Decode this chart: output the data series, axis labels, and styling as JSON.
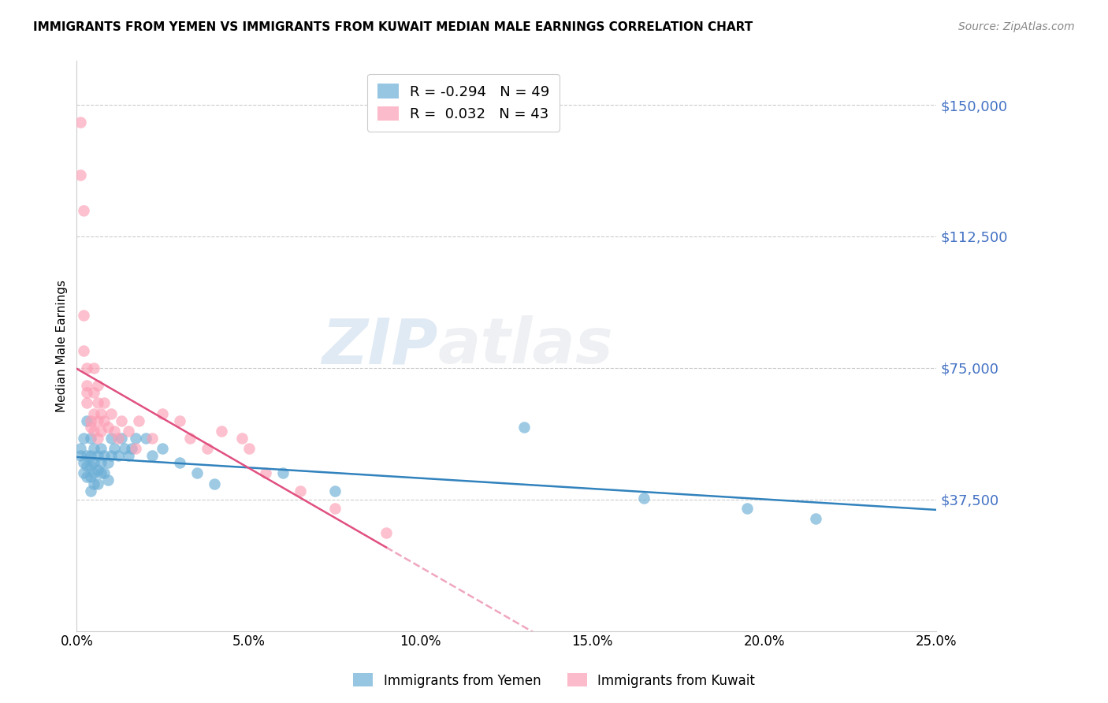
{
  "title": "IMMIGRANTS FROM YEMEN VS IMMIGRANTS FROM KUWAIT MEDIAN MALE EARNINGS CORRELATION CHART",
  "source": "Source: ZipAtlas.com",
  "ylabel": "Median Male Earnings",
  "xlim": [
    0.0,
    0.25
  ],
  "ylim": [
    0,
    162500
  ],
  "yticks": [
    0,
    37500,
    75000,
    112500,
    150000
  ],
  "ytick_labels": [
    "",
    "$37,500",
    "$75,000",
    "$112,500",
    "$150,000"
  ],
  "xtick_labels": [
    "0.0%",
    "5.0%",
    "10.0%",
    "15.0%",
    "20.0%",
    "25.0%"
  ],
  "xticks": [
    0.0,
    0.05,
    0.1,
    0.15,
    0.2,
    0.25
  ],
  "legend_entries": [
    {
      "label": "R = -0.294   N = 49",
      "color": "#6baed6"
    },
    {
      "label": "R =  0.032   N = 43",
      "color": "#fc9eb4"
    }
  ],
  "color_yemen": "#6baed6",
  "color_kuwait": "#fc9eb4",
  "line_color_yemen": "#3182bd",
  "line_color_kuwait": "#e05080",
  "watermark_zip": "ZIP",
  "watermark_atlas": "atlas",
  "yemen_x": [
    0.001,
    0.001,
    0.002,
    0.002,
    0.002,
    0.003,
    0.003,
    0.003,
    0.003,
    0.004,
    0.004,
    0.004,
    0.004,
    0.004,
    0.005,
    0.005,
    0.005,
    0.005,
    0.006,
    0.006,
    0.006,
    0.007,
    0.007,
    0.007,
    0.008,
    0.008,
    0.009,
    0.009,
    0.01,
    0.01,
    0.011,
    0.012,
    0.013,
    0.014,
    0.015,
    0.016,
    0.017,
    0.02,
    0.022,
    0.025,
    0.03,
    0.035,
    0.04,
    0.06,
    0.075,
    0.13,
    0.165,
    0.195,
    0.215
  ],
  "yemen_y": [
    50000,
    52000,
    48000,
    55000,
    45000,
    60000,
    50000,
    47000,
    44000,
    55000,
    50000,
    47000,
    44000,
    40000,
    52000,
    48000,
    45000,
    42000,
    50000,
    46000,
    42000,
    52000,
    48000,
    45000,
    50000,
    45000,
    48000,
    43000,
    55000,
    50000,
    52000,
    50000,
    55000,
    52000,
    50000,
    52000,
    55000,
    55000,
    50000,
    52000,
    48000,
    45000,
    42000,
    45000,
    40000,
    58000,
    38000,
    35000,
    32000
  ],
  "kuwait_x": [
    0.001,
    0.001,
    0.002,
    0.002,
    0.002,
    0.003,
    0.003,
    0.003,
    0.003,
    0.004,
    0.004,
    0.005,
    0.005,
    0.005,
    0.005,
    0.006,
    0.006,
    0.006,
    0.006,
    0.007,
    0.007,
    0.008,
    0.008,
    0.009,
    0.01,
    0.011,
    0.012,
    0.013,
    0.015,
    0.017,
    0.018,
    0.022,
    0.025,
    0.03,
    0.033,
    0.038,
    0.042,
    0.048,
    0.05,
    0.055,
    0.065,
    0.075,
    0.09
  ],
  "kuwait_y": [
    145000,
    130000,
    120000,
    90000,
    80000,
    75000,
    70000,
    68000,
    65000,
    60000,
    58000,
    75000,
    68000,
    62000,
    57000,
    70000,
    65000,
    60000,
    55000,
    62000,
    57000,
    65000,
    60000,
    58000,
    62000,
    57000,
    55000,
    60000,
    57000,
    52000,
    60000,
    55000,
    62000,
    60000,
    55000,
    52000,
    57000,
    55000,
    52000,
    45000,
    40000,
    35000,
    28000
  ]
}
